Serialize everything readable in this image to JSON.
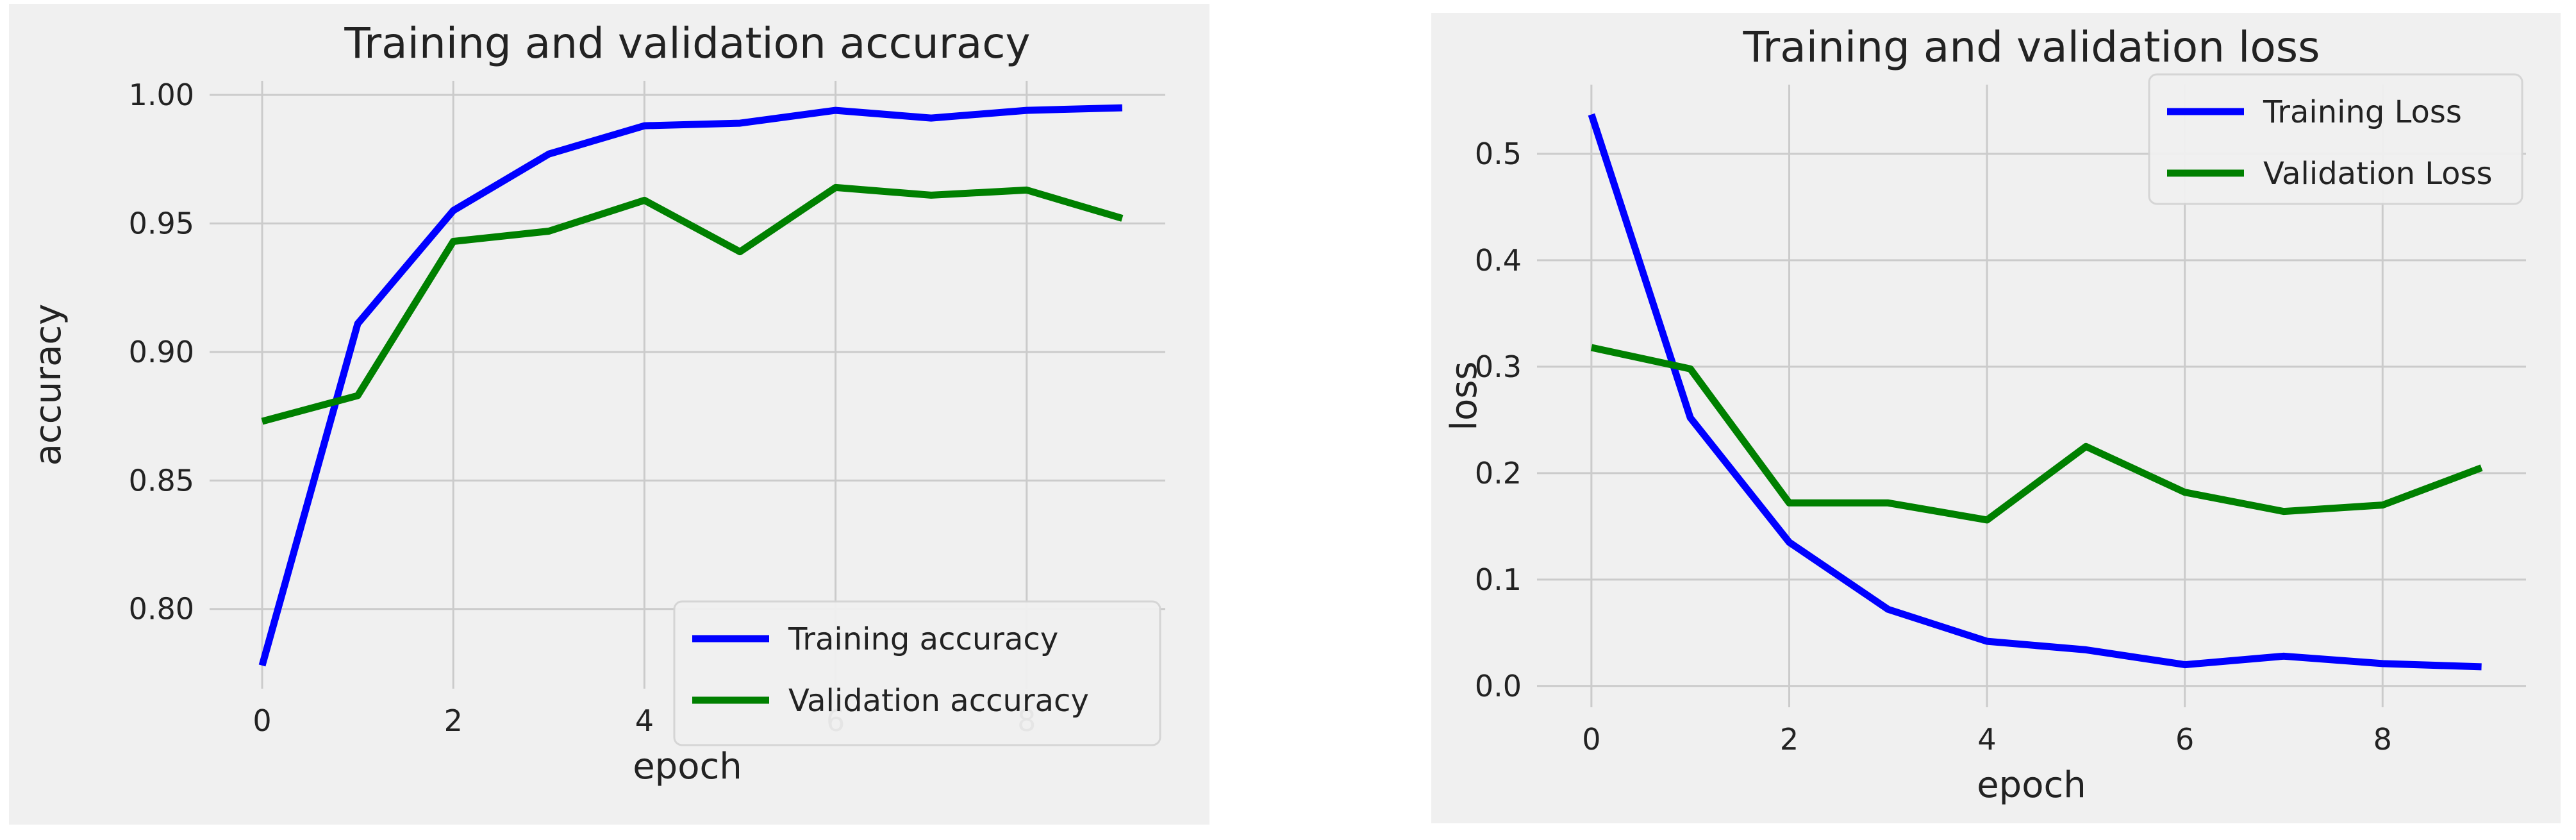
{
  "chart_data": [
    {
      "type": "line",
      "title": "Training and validation accuracy",
      "xlabel": "epoch",
      "ylabel": "accuracy",
      "x": [
        0,
        1,
        2,
        3,
        4,
        5,
        6,
        7,
        8,
        9
      ],
      "xticks": [
        0,
        2,
        4,
        6,
        8
      ],
      "xtick_labels": [
        "0",
        "2",
        "4",
        "6",
        "8"
      ],
      "yticks": [
        0.8,
        0.85,
        0.9,
        0.95,
        1.0
      ],
      "ytick_labels": [
        "0.80",
        "0.85",
        "0.90",
        "0.95",
        "1.00"
      ],
      "xlim": [
        -0.55,
        9.45
      ],
      "ylim": [
        0.769,
        1.0055
      ],
      "grid": true,
      "legend": "lower-right",
      "series": [
        {
          "name": "Training accuracy",
          "color": "#0000ff",
          "values": [
            0.778,
            0.911,
            0.955,
            0.977,
            0.988,
            0.989,
            0.994,
            0.991,
            0.994,
            0.995
          ]
        },
        {
          "name": "Validation accuracy",
          "color": "#008000",
          "values": [
            0.873,
            0.883,
            0.943,
            0.947,
            0.959,
            0.939,
            0.964,
            0.961,
            0.963,
            0.952
          ]
        }
      ]
    },
    {
      "type": "line",
      "title": "Training and validation loss",
      "xlabel": "epoch",
      "ylabel": "loss",
      "x": [
        0,
        1,
        2,
        3,
        4,
        5,
        6,
        7,
        8,
        9
      ],
      "xticks": [
        0,
        2,
        4,
        6,
        8
      ],
      "xtick_labels": [
        "0",
        "2",
        "4",
        "6",
        "8"
      ],
      "yticks": [
        0.0,
        0.1,
        0.2,
        0.3,
        0.4,
        0.5
      ],
      "ytick_labels": [
        "0.0",
        "0.1",
        "0.2",
        "0.3",
        "0.4",
        "0.5"
      ],
      "xlim": [
        -0.55,
        9.45
      ],
      "ylim": [
        -0.02,
        0.565
      ],
      "grid": true,
      "legend": "top-right",
      "series": [
        {
          "name": "Training Loss",
          "color": "#0000ff",
          "values": [
            0.537,
            0.252,
            0.135,
            0.072,
            0.042,
            0.034,
            0.02,
            0.028,
            0.021,
            0.018
          ]
        },
        {
          "name": "Validation Loss",
          "color": "#008000",
          "values": [
            0.318,
            0.298,
            0.172,
            0.172,
            0.156,
            0.225,
            0.182,
            0.164,
            0.17,
            0.205
          ]
        }
      ]
    }
  ]
}
